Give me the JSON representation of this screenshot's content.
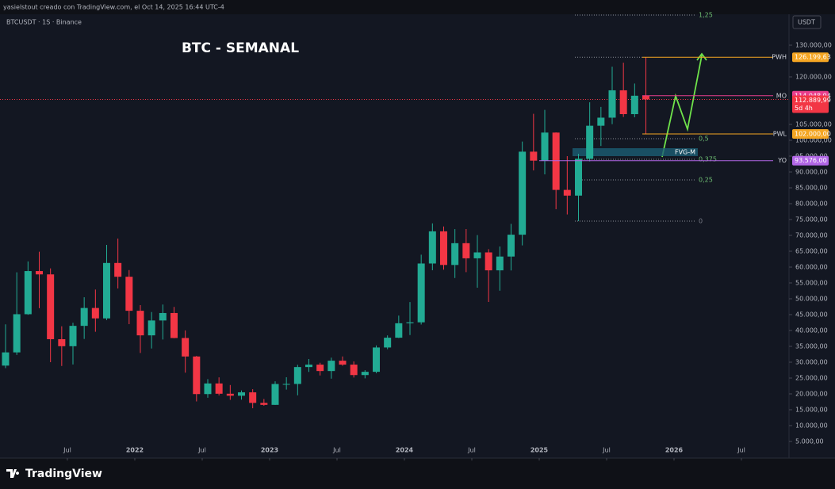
{
  "header": "yasielstout creado con TradingView.com, el Oct 14, 2025 16:44 UTC-4",
  "footer": {
    "brand": "TradingView"
  },
  "chart_data": {
    "type": "candlestick",
    "symbol": "BTCUSDT · 1S · Binance",
    "title": "BTC - SEMANAL",
    "currency": "USDT",
    "up_color": "#22ab94",
    "down_color": "#f23645",
    "x": [
      "2021-01",
      "2021-02",
      "2021-03",
      "2021-04",
      "2021-05",
      "2021-06",
      "2021-07",
      "2021-08",
      "2021-09",
      "2021-10",
      "2021-11",
      "2021-12",
      "2022-01",
      "2022-02",
      "2022-03",
      "2022-04",
      "2022-05",
      "2022-06",
      "2022-07",
      "2022-08",
      "2022-09",
      "2022-10",
      "2022-11",
      "2022-12",
      "2023-01",
      "2023-02",
      "2023-03",
      "2023-04",
      "2023-05",
      "2023-06",
      "2023-07",
      "2023-08",
      "2023-09",
      "2023-10",
      "2023-11",
      "2023-12",
      "2024-01",
      "2024-02",
      "2024-03",
      "2024-04",
      "2024-05",
      "2024-06",
      "2024-07",
      "2024-08",
      "2024-09",
      "2024-10",
      "2024-11",
      "2024-12",
      "2025-01",
      "2025-02",
      "2025-03",
      "2025-04",
      "2025-05",
      "2025-06",
      "2025-07",
      "2025-08",
      "2025-09",
      "2025-10"
    ],
    "open": [
      28923,
      33092,
      45135,
      58740,
      57697,
      37254,
      35045,
      41461,
      47100,
      43820,
      61300,
      56950,
      46216,
      38466,
      43160,
      45510,
      37630,
      31801,
      19942,
      23297,
      20050,
      19423,
      20490,
      17165,
      16542,
      23125,
      23142,
      28465,
      29233,
      27210,
      30472,
      29232,
      25941,
      26963,
      34640,
      37724,
      42283,
      42580,
      61130,
      71280,
      60672,
      67540,
      62772,
      64628,
      58974,
      63327,
      70215,
      96407,
      93576,
      102429,
      84350,
      82550,
      94172,
      104591,
      107135,
      115764,
      108246,
      114049
    ],
    "high": [
      41950,
      58352,
      61788,
      64854,
      59592,
      41330,
      42448,
      50482,
      52920,
      67000,
      69000,
      59053,
      47990,
      45821,
      48189,
      47444,
      40023,
      31986,
      24668,
      25211,
      22799,
      21085,
      21480,
      18388,
      23960,
      25250,
      29184,
      31000,
      29820,
      31431,
      31804,
      30244,
      27483,
      35280,
      38450,
      44700,
      48970,
      63913,
      73777,
      72797,
      71979,
      71997,
      70079,
      65660,
      66498,
      73620,
      99588,
      108353,
      109588,
      102500,
      95000,
      95758,
      111980,
      110530,
      123218,
      124474,
      117900,
      126199
    ],
    "low": [
      28130,
      32296,
      44950,
      47044,
      30000,
      28805,
      29278,
      37332,
      39600,
      43283,
      53256,
      42000,
      32917,
      34322,
      37155,
      37578,
      26700,
      17622,
      18782,
      19520,
      18125,
      18190,
      15476,
      16256,
      16500,
      21351,
      19549,
      26942,
      25811,
      24800,
      28861,
      25166,
      24901,
      26538,
      34097,
      37617,
      38555,
      41884,
      59005,
      59191,
      56552,
      58402,
      53485,
      49000,
      52550,
      58946,
      66835,
      90500,
      89256,
      78258,
      76606,
      74508,
      93346,
      98200,
      105100,
      107350,
      107255,
      102000
    ],
    "close": [
      33092,
      45135,
      58740,
      57694,
      37254,
      35045,
      41461,
      47100,
      43824,
      61300,
      56950,
      46216,
      38466,
      43160,
      45510,
      37630,
      31801,
      19942,
      23293,
      20050,
      19423,
      20490,
      17164,
      16542,
      23125,
      23142,
      28465,
      29233,
      27210,
      30472,
      29232,
      25941,
      26963,
      34640,
      37724,
      42283,
      42580,
      61130,
      71280,
      60672,
      67540,
      62772,
      64628,
      58974,
      63327,
      70215,
      96407,
      93576,
      102429,
      84350,
      82550,
      94172,
      104591,
      107135,
      115764,
      108246,
      114049,
      112890
    ],
    "xticks": [
      {
        "value": "2021-07",
        "label": "Jul"
      },
      {
        "value": "2022-01",
        "label": "2022"
      },
      {
        "value": "2022-07",
        "label": "Jul"
      },
      {
        "value": "2023-01",
        "label": "2023"
      },
      {
        "value": "2023-07",
        "label": "Jul"
      },
      {
        "value": "2024-01",
        "label": "2024"
      },
      {
        "value": "2024-07",
        "label": "Jul"
      },
      {
        "value": "2025-01",
        "label": "2025"
      },
      {
        "value": "2025-07",
        "label": "Jul"
      },
      {
        "value": "2026-01",
        "label": "2026"
      },
      {
        "value": "2026-07",
        "label": "Jul"
      }
    ],
    "ylim": [
      0,
      139750
    ],
    "yticks": [
      {
        "value": 5000,
        "label": "5.000,00"
      },
      {
        "value": 10000,
        "label": "10.000,00"
      },
      {
        "value": 15000,
        "label": "15.000,00"
      },
      {
        "value": 20000,
        "label": "20.000,00"
      },
      {
        "value": 25000,
        "label": "25.000,00"
      },
      {
        "value": 30000,
        "label": "30.000,00"
      },
      {
        "value": 35000,
        "label": "35.000,00"
      },
      {
        "value": 40000,
        "label": "40.000,00"
      },
      {
        "value": 45000,
        "label": "45.000,00"
      },
      {
        "value": 50000,
        "label": "50.000,00"
      },
      {
        "value": 55000,
        "label": "55.000,00"
      },
      {
        "value": 60000,
        "label": "60.000,00"
      },
      {
        "value": 65000,
        "label": "65.000,00"
      },
      {
        "value": 70000,
        "label": "70.000,00"
      },
      {
        "value": 75000,
        "label": "75.000,00"
      },
      {
        "value": 80000,
        "label": "80.000,00"
      },
      {
        "value": 85000,
        "label": "85.000,00"
      },
      {
        "value": 90000,
        "label": "90.000,00"
      },
      {
        "value": 95000,
        "label": "95.000,00"
      },
      {
        "value": 100000,
        "label": "100.000,00"
      },
      {
        "value": 105000,
        "label": "105.000,00"
      },
      {
        "value": 120000,
        "label": "120.000,00"
      },
      {
        "value": 130000,
        "label": "130.000,00"
      }
    ],
    "fib_levels": [
      {
        "name": "1,25",
        "value": 139500
      },
      {
        "name": "0,5",
        "value": 100500
      },
      {
        "name": "0,375",
        "value": 94000
      },
      {
        "name": "0,25",
        "value": 87500
      },
      {
        "name": "0",
        "value": 74500
      }
    ],
    "levels": [
      {
        "name": "PWH",
        "value": 126199.63,
        "label": "126.199,63",
        "color": "#f5a623"
      },
      {
        "name": "MO",
        "value": 114048.94,
        "label": "114.048,94",
        "color": "#e83e8c"
      },
      {
        "name": "PWL",
        "value": 102000,
        "label": "102.000,00",
        "color": "#f5a623"
      },
      {
        "name": "YO",
        "value": 93576,
        "label": "93.576,00",
        "color": "#b267e6"
      }
    ],
    "last": {
      "value": 112889.99,
      "label": "112.889,99",
      "countdown": "5d 4h",
      "color": "#f23645"
    },
    "zone": {
      "name": "FVG-M",
      "low": 95000,
      "high": 97500
    }
  }
}
